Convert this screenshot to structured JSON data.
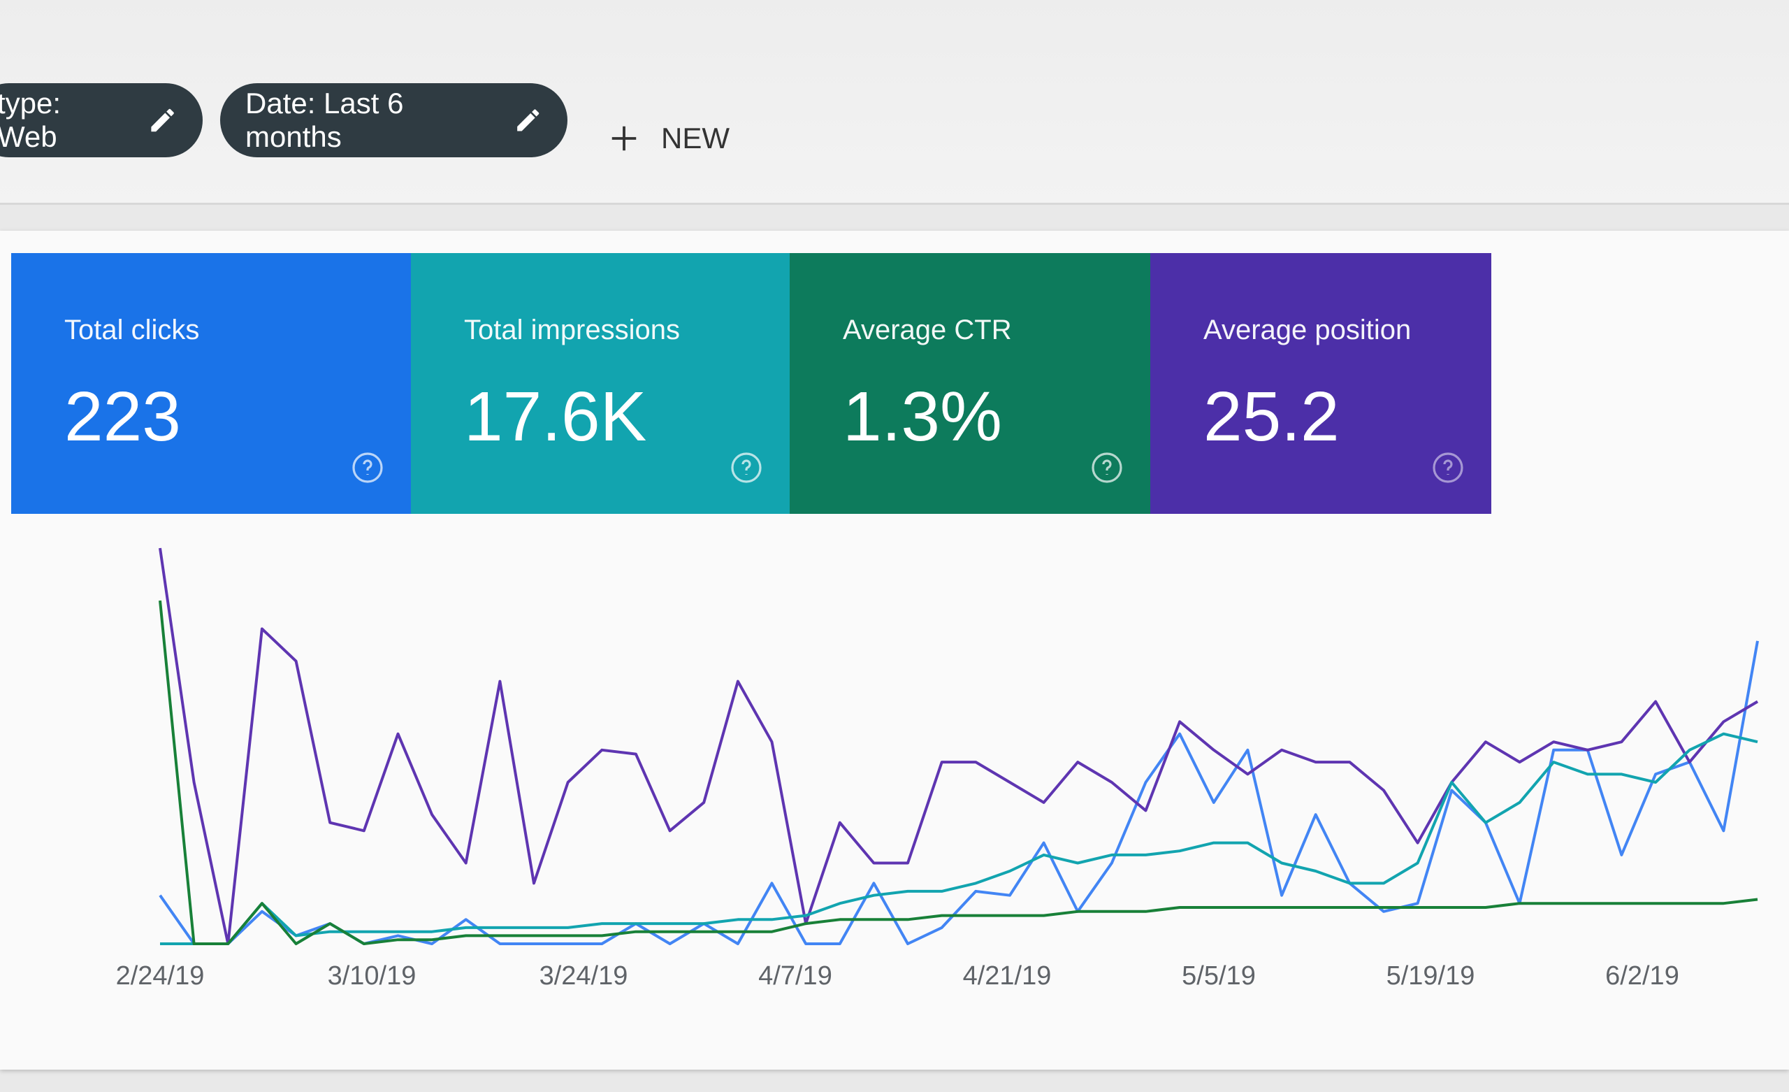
{
  "filters": [
    {
      "label": "type: Web"
    },
    {
      "label": "Date: Last 6 months"
    }
  ],
  "new_button": "NEW",
  "cards": [
    {
      "label": "Total clicks",
      "value": "223",
      "color": "#1a73e8"
    },
    {
      "label": "Total impressions",
      "value": "17.6K",
      "color": "#12a4af"
    },
    {
      "label": "Average CTR",
      "value": "1.3%",
      "color": "#0d7b5c"
    },
    {
      "label": "Average position",
      "value": "25.2",
      "color": "#4c2fa8"
    }
  ],
  "chart_data": {
    "type": "line",
    "x_labels": [
      "2/24/19",
      "3/10/19",
      "3/24/19",
      "4/7/19",
      "4/21/19",
      "5/5/19",
      "5/19/19",
      "6/2/19"
    ],
    "series": [
      {
        "color": "#4285f4",
        "values": [
          12,
          0,
          0,
          8,
          2,
          5,
          0,
          2,
          0,
          6,
          0,
          0,
          0,
          0,
          5,
          0,
          5,
          0,
          15,
          0,
          0,
          15,
          0,
          4,
          13,
          12,
          25,
          8,
          20,
          40,
          52,
          35,
          48,
          12,
          32,
          15,
          8,
          10,
          38,
          30,
          10,
          48,
          48,
          22,
          42,
          45,
          28,
          75
        ]
      },
      {
        "color": "#5e35b1",
        "values": [
          98,
          40,
          0,
          78,
          70,
          30,
          28,
          52,
          32,
          20,
          65,
          15,
          40,
          48,
          47,
          28,
          35,
          65,
          50,
          5,
          30,
          20,
          20,
          45,
          45,
          40,
          35,
          45,
          40,
          33,
          55,
          48,
          42,
          48,
          45,
          45,
          38,
          25,
          40,
          50,
          45,
          50,
          48,
          50,
          60,
          45,
          55,
          60
        ]
      },
      {
        "color": "#12a4af",
        "values": [
          0,
          0,
          0,
          10,
          2,
          3,
          3,
          3,
          3,
          4,
          4,
          4,
          4,
          5,
          5,
          5,
          5,
          6,
          6,
          7,
          10,
          12,
          13,
          13,
          15,
          18,
          22,
          20,
          22,
          22,
          23,
          25,
          25,
          20,
          18,
          15,
          15,
          20,
          40,
          30,
          35,
          45,
          42,
          42,
          40,
          48,
          52,
          50
        ]
      },
      {
        "color": "#188038",
        "values": [
          85,
          0,
          0,
          10,
          0,
          5,
          0,
          1,
          1,
          2,
          2,
          2,
          2,
          2,
          3,
          3,
          3,
          3,
          3,
          5,
          6,
          6,
          6,
          7,
          7,
          7,
          7,
          8,
          8,
          8,
          9,
          9,
          9,
          9,
          9,
          9,
          9,
          9,
          9,
          9,
          10,
          10,
          10,
          10,
          10,
          10,
          10,
          11
        ]
      }
    ]
  }
}
